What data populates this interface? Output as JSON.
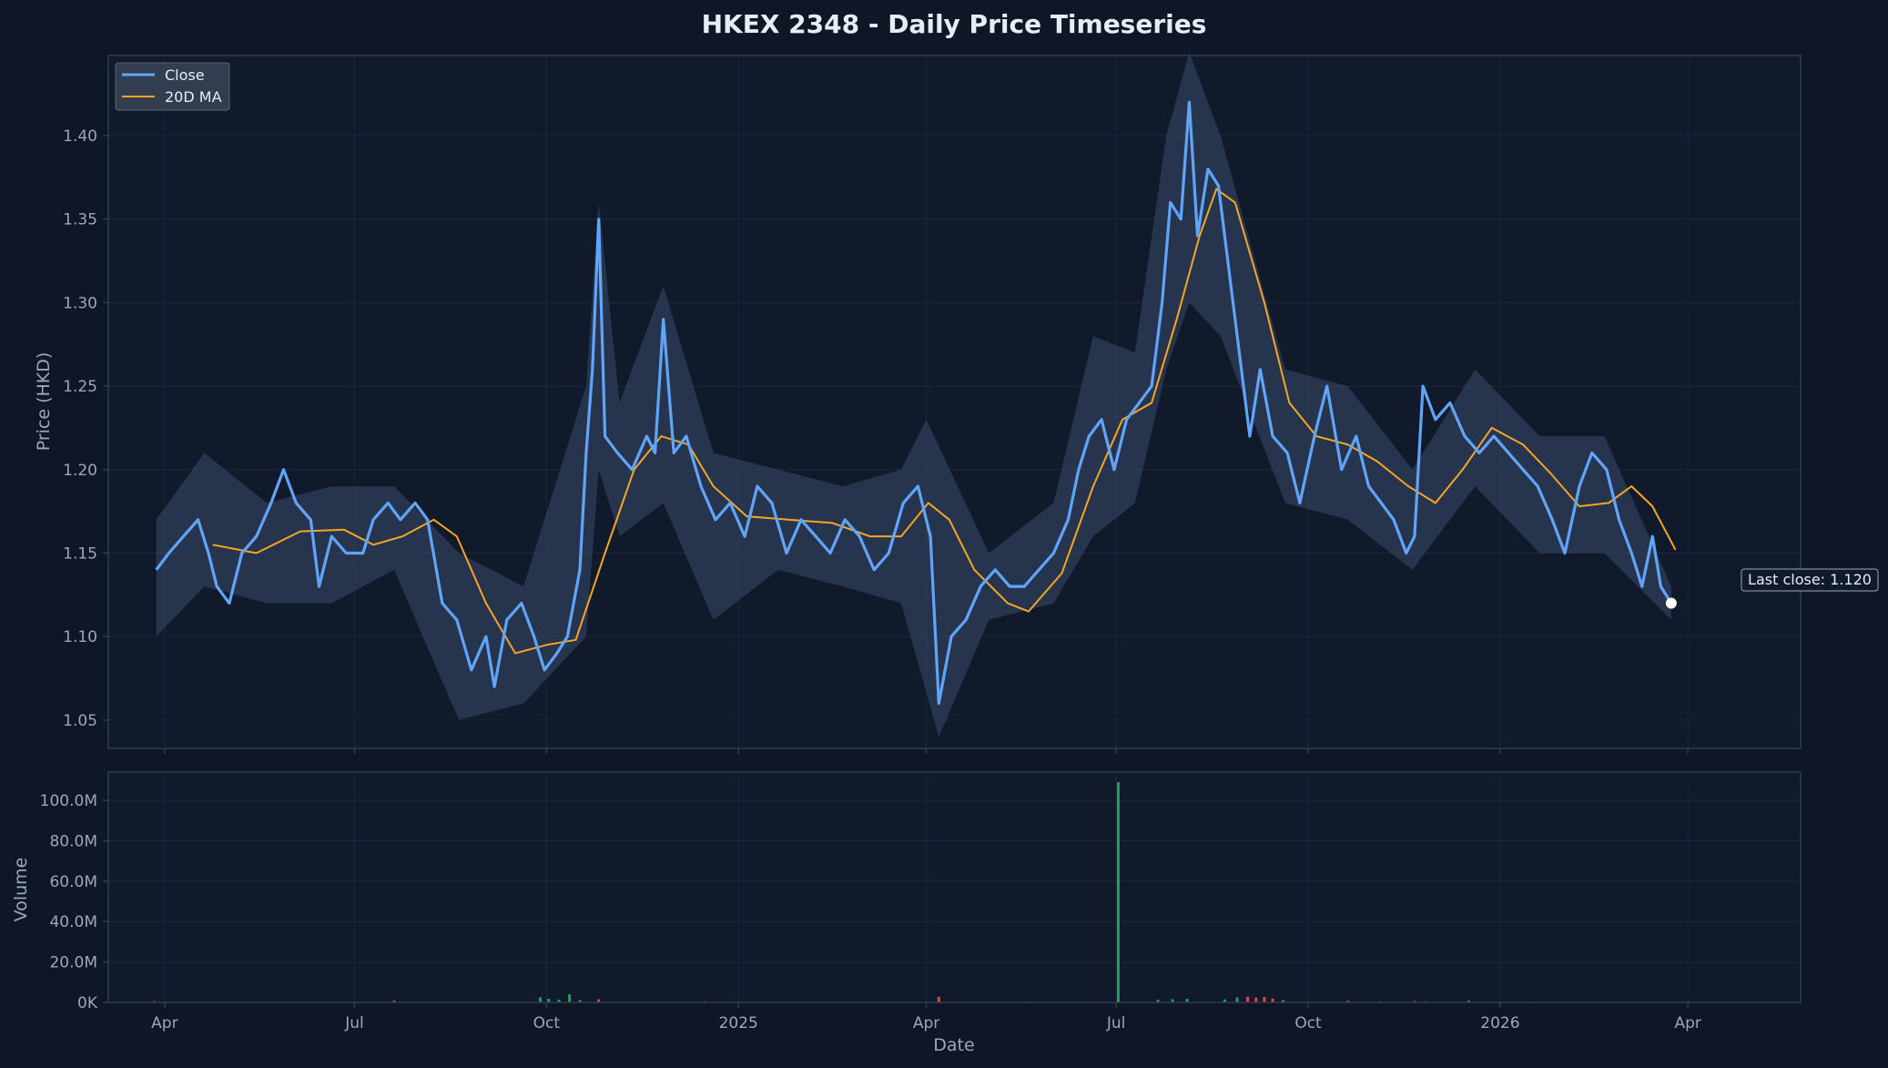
{
  "colors": {
    "background": "#0f1726",
    "plot_bg": "#111a2b",
    "frame": "#2e3b52",
    "grid": "#1d2739",
    "close": "#60a5fa",
    "ma": "#f5a623",
    "range_band": "#3a4b6a",
    "volume_up": "#22a05a",
    "volume_down": "#e04848",
    "text": "#e6edf7",
    "muted": "#9aa7bd"
  },
  "chart_data": {
    "type": "line",
    "title": "HKEX 2348 - Daily Price Timeseries",
    "xlabel": "Date",
    "ylabel": "Price (HKD)",
    "volume_ylabel": "Volume",
    "x_ticks": [
      "Apr",
      "Jul",
      "Oct",
      "2025",
      "Apr",
      "Jul",
      "Oct",
      "2026",
      "Apr"
    ],
    "x_tick_dates": [
      "2024-04-01",
      "2024-07-01",
      "2024-10-01",
      "2025-01-01",
      "2025-04-01",
      "2025-07-01",
      "2025-10-01",
      "2026-01-01",
      "2026-04-01"
    ],
    "xlim": [
      "2024-03-05",
      "2026-05-25"
    ],
    "ylim": [
      1.033,
      1.448
    ],
    "y_ticks": [
      "1.05",
      "1.10",
      "1.15",
      "1.20",
      "1.25",
      "1.30",
      "1.35",
      "1.40"
    ],
    "volume_ylim": [
      0,
      114000000
    ],
    "volume_ticks": [
      "0K",
      "20.0M",
      "40.0M",
      "60.0M",
      "80.0M",
      "100.0M"
    ],
    "legend": {
      "location": "top-left",
      "entries": [
        "Close",
        "20D MA"
      ]
    },
    "grid": true,
    "annotation": {
      "text": "Last close: 1.120",
      "date": "2026-03-24",
      "value": 1.12
    },
    "close_series": {
      "name": "Close",
      "points": [
        [
          "2024-03-28",
          1.14
        ],
        [
          "2024-04-03",
          1.15
        ],
        [
          "2024-04-10",
          1.16
        ],
        [
          "2024-04-17",
          1.17
        ],
        [
          "2024-04-22",
          1.15
        ],
        [
          "2024-04-26",
          1.13
        ],
        [
          "2024-05-02",
          1.12
        ],
        [
          "2024-05-08",
          1.15
        ],
        [
          "2024-05-15",
          1.16
        ],
        [
          "2024-05-22",
          1.18
        ],
        [
          "2024-05-28",
          1.2
        ],
        [
          "2024-06-03",
          1.18
        ],
        [
          "2024-06-10",
          1.17
        ],
        [
          "2024-06-14",
          1.13
        ],
        [
          "2024-06-20",
          1.16
        ],
        [
          "2024-06-27",
          1.15
        ],
        [
          "2024-07-05",
          1.15
        ],
        [
          "2024-07-10",
          1.17
        ],
        [
          "2024-07-17",
          1.18
        ],
        [
          "2024-07-23",
          1.17
        ],
        [
          "2024-07-30",
          1.18
        ],
        [
          "2024-08-05",
          1.17
        ],
        [
          "2024-08-12",
          1.12
        ],
        [
          "2024-08-19",
          1.11
        ],
        [
          "2024-08-26",
          1.08
        ],
        [
          "2024-09-02",
          1.1
        ],
        [
          "2024-09-06",
          1.07
        ],
        [
          "2024-09-12",
          1.11
        ],
        [
          "2024-09-19",
          1.12
        ],
        [
          "2024-09-25",
          1.1
        ],
        [
          "2024-09-30",
          1.08
        ],
        [
          "2024-10-06",
          1.09
        ],
        [
          "2024-10-11",
          1.1
        ],
        [
          "2024-10-17",
          1.14
        ],
        [
          "2024-10-20",
          1.21
        ],
        [
          "2024-10-23",
          1.26
        ],
        [
          "2024-10-26",
          1.35
        ],
        [
          "2024-10-29",
          1.22
        ],
        [
          "2024-11-04",
          1.21
        ],
        [
          "2024-11-11",
          1.2
        ],
        [
          "2024-11-18",
          1.22
        ],
        [
          "2024-11-22",
          1.21
        ],
        [
          "2024-11-26",
          1.29
        ],
        [
          "2024-12-01",
          1.21
        ],
        [
          "2024-12-07",
          1.22
        ],
        [
          "2024-12-14",
          1.19
        ],
        [
          "2024-12-21",
          1.17
        ],
        [
          "2024-12-28",
          1.18
        ],
        [
          "2025-01-04",
          1.16
        ],
        [
          "2025-01-10",
          1.19
        ],
        [
          "2025-01-17",
          1.18
        ],
        [
          "2025-01-24",
          1.15
        ],
        [
          "2025-01-31",
          1.17
        ],
        [
          "2025-02-07",
          1.16
        ],
        [
          "2025-02-14",
          1.15
        ],
        [
          "2025-02-21",
          1.17
        ],
        [
          "2025-02-28",
          1.16
        ],
        [
          "2025-03-07",
          1.14
        ],
        [
          "2025-03-14",
          1.15
        ],
        [
          "2025-03-21",
          1.18
        ],
        [
          "2025-03-28",
          1.19
        ],
        [
          "2025-04-03",
          1.16
        ],
        [
          "2025-04-07",
          1.06
        ],
        [
          "2025-04-13",
          1.1
        ],
        [
          "2025-04-20",
          1.11
        ],
        [
          "2025-04-27",
          1.13
        ],
        [
          "2025-05-04",
          1.14
        ],
        [
          "2025-05-11",
          1.13
        ],
        [
          "2025-05-18",
          1.13
        ],
        [
          "2025-05-25",
          1.14
        ],
        [
          "2025-06-01",
          1.15
        ],
        [
          "2025-06-08",
          1.17
        ],
        [
          "2025-06-13",
          1.2
        ],
        [
          "2025-06-18",
          1.22
        ],
        [
          "2025-06-24",
          1.23
        ],
        [
          "2025-06-30",
          1.2
        ],
        [
          "2025-07-06",
          1.23
        ],
        [
          "2025-07-12",
          1.24
        ],
        [
          "2025-07-18",
          1.25
        ],
        [
          "2025-07-23",
          1.3
        ],
        [
          "2025-07-27",
          1.36
        ],
        [
          "2025-08-01",
          1.35
        ],
        [
          "2025-08-05",
          1.42
        ],
        [
          "2025-08-09",
          1.34
        ],
        [
          "2025-08-14",
          1.38
        ],
        [
          "2025-08-19",
          1.37
        ],
        [
          "2025-08-24",
          1.32
        ],
        [
          "2025-08-29",
          1.27
        ],
        [
          "2025-09-03",
          1.22
        ],
        [
          "2025-09-08",
          1.26
        ],
        [
          "2025-09-14",
          1.22
        ],
        [
          "2025-09-21",
          1.21
        ],
        [
          "2025-09-27",
          1.18
        ],
        [
          "2025-10-04",
          1.22
        ],
        [
          "2025-10-10",
          1.25
        ],
        [
          "2025-10-17",
          1.2
        ],
        [
          "2025-10-24",
          1.22
        ],
        [
          "2025-10-30",
          1.19
        ],
        [
          "2025-11-05",
          1.18
        ],
        [
          "2025-11-11",
          1.17
        ],
        [
          "2025-11-17",
          1.15
        ],
        [
          "2025-11-21",
          1.16
        ],
        [
          "2025-11-25",
          1.25
        ],
        [
          "2025-12-01",
          1.23
        ],
        [
          "2025-12-08",
          1.24
        ],
        [
          "2025-12-15",
          1.22
        ],
        [
          "2025-12-22",
          1.21
        ],
        [
          "2025-12-29",
          1.22
        ],
        [
          "2026-01-05",
          1.21
        ],
        [
          "2026-01-12",
          1.2
        ],
        [
          "2026-01-19",
          1.19
        ],
        [
          "2026-01-26",
          1.17
        ],
        [
          "2026-02-01",
          1.15
        ],
        [
          "2026-02-08",
          1.19
        ],
        [
          "2026-02-14",
          1.21
        ],
        [
          "2026-02-21",
          1.2
        ],
        [
          "2026-02-27",
          1.17
        ],
        [
          "2026-03-05",
          1.15
        ],
        [
          "2026-03-10",
          1.13
        ],
        [
          "2026-03-15",
          1.16
        ],
        [
          "2026-03-19",
          1.13
        ],
        [
          "2026-03-24",
          1.12
        ]
      ]
    },
    "ma_series": {
      "name": "20D MA",
      "points": [
        [
          "2024-04-24",
          1.155
        ],
        [
          "2024-05-15",
          1.15
        ],
        [
          "2024-06-05",
          1.163
        ],
        [
          "2024-06-26",
          1.164
        ],
        [
          "2024-07-10",
          1.155
        ],
        [
          "2024-07-24",
          1.16
        ],
        [
          "2024-08-08",
          1.17
        ],
        [
          "2024-08-19",
          1.16
        ],
        [
          "2024-09-02",
          1.12
        ],
        [
          "2024-09-16",
          1.09
        ],
        [
          "2024-10-01",
          1.095
        ],
        [
          "2024-10-15",
          1.098
        ],
        [
          "2024-10-29",
          1.15
        ],
        [
          "2024-11-12",
          1.2
        ],
        [
          "2024-11-25",
          1.22
        ],
        [
          "2024-12-08",
          1.215
        ],
        [
          "2024-12-20",
          1.19
        ],
        [
          "2025-01-05",
          1.172
        ],
        [
          "2025-01-25",
          1.17
        ],
        [
          "2025-02-15",
          1.168
        ],
        [
          "2025-03-05",
          1.16
        ],
        [
          "2025-03-20",
          1.16
        ],
        [
          "2025-04-02",
          1.18
        ],
        [
          "2025-04-12",
          1.17
        ],
        [
          "2025-04-24",
          1.14
        ],
        [
          "2025-05-10",
          1.12
        ],
        [
          "2025-05-20",
          1.115
        ],
        [
          "2025-06-05",
          1.138
        ],
        [
          "2025-06-20",
          1.19
        ],
        [
          "2025-07-04",
          1.23
        ],
        [
          "2025-07-18",
          1.24
        ],
        [
          "2025-07-30",
          1.29
        ],
        [
          "2025-08-10",
          1.34
        ],
        [
          "2025-08-18",
          1.368
        ],
        [
          "2025-08-27",
          1.36
        ],
        [
          "2025-09-10",
          1.3
        ],
        [
          "2025-09-22",
          1.24
        ],
        [
          "2025-10-05",
          1.22
        ],
        [
          "2025-10-20",
          1.215
        ],
        [
          "2025-11-03",
          1.205
        ],
        [
          "2025-11-18",
          1.19
        ],
        [
          "2025-12-01",
          1.18
        ],
        [
          "2025-12-14",
          1.2
        ],
        [
          "2025-12-28",
          1.225
        ],
        [
          "2026-01-12",
          1.215
        ],
        [
          "2026-01-25",
          1.198
        ],
        [
          "2026-02-08",
          1.178
        ],
        [
          "2026-02-22",
          1.18
        ],
        [
          "2026-03-05",
          1.19
        ],
        [
          "2026-03-15",
          1.178
        ],
        [
          "2026-03-26",
          1.152
        ]
      ]
    },
    "price_range_band": {
      "upper": [
        [
          "2024-03-28",
          1.17
        ],
        [
          "2024-04-20",
          1.21
        ],
        [
          "2024-05-20",
          1.18
        ],
        [
          "2024-06-20",
          1.19
        ],
        [
          "2024-07-20",
          1.19
        ],
        [
          "2024-08-20",
          1.15
        ],
        [
          "2024-09-20",
          1.13
        ],
        [
          "2024-10-20",
          1.25
        ],
        [
          "2024-10-26",
          1.36
        ],
        [
          "2024-11-05",
          1.24
        ],
        [
          "2024-11-26",
          1.31
        ],
        [
          "2024-12-20",
          1.21
        ],
        [
          "2025-01-20",
          1.2
        ],
        [
          "2025-02-20",
          1.19
        ],
        [
          "2025-03-20",
          1.2
        ],
        [
          "2025-04-01",
          1.23
        ],
        [
          "2025-05-01",
          1.15
        ],
        [
          "2025-06-01",
          1.18
        ],
        [
          "2025-06-20",
          1.28
        ],
        [
          "2025-07-10",
          1.27
        ],
        [
          "2025-07-25",
          1.4
        ],
        [
          "2025-08-05",
          1.45
        ],
        [
          "2025-08-20",
          1.4
        ],
        [
          "2025-09-20",
          1.26
        ],
        [
          "2025-10-20",
          1.25
        ],
        [
          "2025-11-20",
          1.2
        ],
        [
          "2025-12-20",
          1.26
        ],
        [
          "2026-01-20",
          1.22
        ],
        [
          "2026-02-20",
          1.22
        ],
        [
          "2026-03-24",
          1.13
        ]
      ],
      "lower": [
        [
          "2024-03-28",
          1.1
        ],
        [
          "2024-04-20",
          1.13
        ],
        [
          "2024-05-20",
          1.12
        ],
        [
          "2024-06-20",
          1.12
        ],
        [
          "2024-07-20",
          1.14
        ],
        [
          "2024-08-20",
          1.05
        ],
        [
          "2024-09-20",
          1.06
        ],
        [
          "2024-10-20",
          1.1
        ],
        [
          "2024-10-26",
          1.2
        ],
        [
          "2024-11-05",
          1.16
        ],
        [
          "2024-11-26",
          1.18
        ],
        [
          "2024-12-20",
          1.11
        ],
        [
          "2025-01-20",
          1.14
        ],
        [
          "2025-02-20",
          1.13
        ],
        [
          "2025-03-20",
          1.12
        ],
        [
          "2025-04-07",
          1.04
        ],
        [
          "2025-05-01",
          1.11
        ],
        [
          "2025-06-01",
          1.12
        ],
        [
          "2025-06-20",
          1.16
        ],
        [
          "2025-07-10",
          1.18
        ],
        [
          "2025-07-25",
          1.26
        ],
        [
          "2025-08-05",
          1.3
        ],
        [
          "2025-08-20",
          1.28
        ],
        [
          "2025-09-20",
          1.18
        ],
        [
          "2025-10-20",
          1.17
        ],
        [
          "2025-11-20",
          1.14
        ],
        [
          "2025-12-20",
          1.19
        ],
        [
          "2026-01-20",
          1.15
        ],
        [
          "2026-02-20",
          1.15
        ],
        [
          "2026-03-24",
          1.11
        ]
      ]
    },
    "volume_series": {
      "name": "Volume",
      "points": [
        [
          "2024-03-27",
          600000,
          "down"
        ],
        [
          "2024-07-20",
          900000,
          "down"
        ],
        [
          "2024-09-28",
          2500000,
          "up"
        ],
        [
          "2024-10-02",
          1800000,
          "up"
        ],
        [
          "2024-10-07",
          1400000,
          "up"
        ],
        [
          "2024-10-12",
          4000000,
          "up"
        ],
        [
          "2024-10-17",
          1200000,
          "up"
        ],
        [
          "2024-10-26",
          1500000,
          "down"
        ],
        [
          "2024-12-16",
          500000,
          "down"
        ],
        [
          "2025-04-07",
          2800000,
          "down"
        ],
        [
          "2025-05-20",
          400000,
          "up"
        ],
        [
          "2025-07-02",
          109000000,
          "up"
        ],
        [
          "2025-07-21",
          1300000,
          "up"
        ],
        [
          "2025-07-28",
          1600000,
          "up"
        ],
        [
          "2025-08-04",
          1800000,
          "up"
        ],
        [
          "2025-08-22",
          1500000,
          "up"
        ],
        [
          "2025-08-28",
          2500000,
          "up"
        ],
        [
          "2025-09-02",
          2800000,
          "down"
        ],
        [
          "2025-09-06",
          2400000,
          "down"
        ],
        [
          "2025-09-10",
          2700000,
          "down"
        ],
        [
          "2025-09-14",
          1900000,
          "down"
        ],
        [
          "2025-09-19",
          1200000,
          "up"
        ],
        [
          "2025-10-20",
          800000,
          "down"
        ],
        [
          "2025-11-05",
          500000,
          "up"
        ],
        [
          "2025-11-21",
          700000,
          "down"
        ],
        [
          "2025-11-26",
          500000,
          "up"
        ],
        [
          "2025-12-17",
          900000,
          "up"
        ],
        [
          "2026-01-15",
          400000,
          "up"
        ]
      ]
    }
  }
}
